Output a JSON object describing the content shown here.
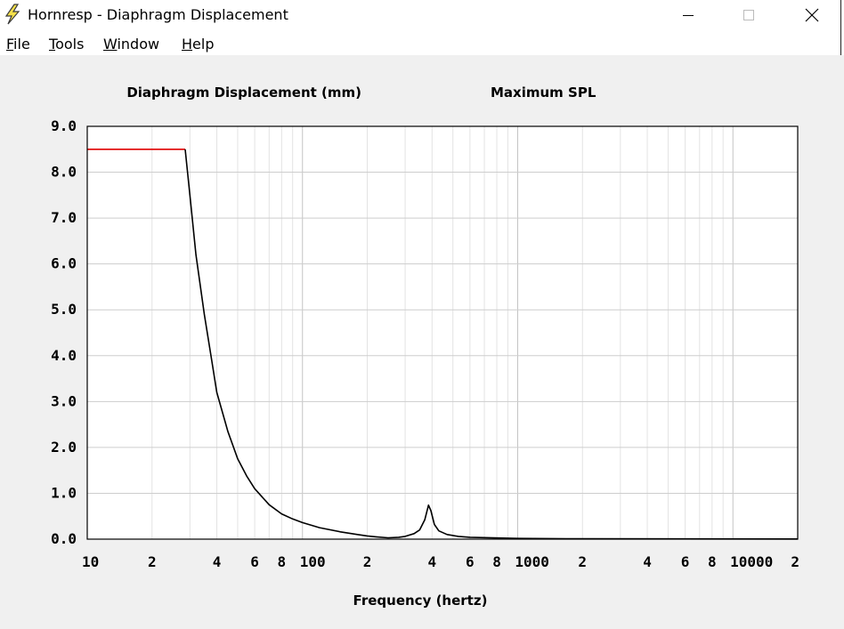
{
  "window": {
    "title": "Hornresp - Diaphragm Displacement",
    "icon": "lightning-bolt-icon",
    "controls": [
      "minimize-icon",
      "maximize-icon",
      "close-icon"
    ]
  },
  "menu": [
    {
      "label": "File",
      "mnemonic": "F",
      "rest": "ile"
    },
    {
      "label": "Tools",
      "mnemonic": "T",
      "rest": "ools"
    },
    {
      "label": "Window",
      "mnemonic": "W",
      "rest": "indow"
    },
    {
      "label": "Help",
      "mnemonic": "H",
      "rest": "elp"
    }
  ],
  "chart_data": {
    "type": "line",
    "title_left": "Diaphragm Displacement (mm)",
    "title_right": "Maximum SPL",
    "xlabel": "Frequency (hertz)",
    "ylabel": "",
    "x_scale": "log",
    "xlim": [
      10,
      20000
    ],
    "ylim": [
      0,
      9
    ],
    "grid": true,
    "y_ticks": [
      "0.0",
      "1.0",
      "2.0",
      "3.0",
      "4.0",
      "5.0",
      "6.0",
      "7.0",
      "8.0",
      "9.0"
    ],
    "x_tick_labels": [
      {
        "f": 10,
        "label": "10"
      },
      {
        "f": 20,
        "label": "2"
      },
      {
        "f": 40,
        "label": "4"
      },
      {
        "f": 60,
        "label": "6"
      },
      {
        "f": 80,
        "label": "8"
      },
      {
        "f": 100,
        "label": "100"
      },
      {
        "f": 200,
        "label": "2"
      },
      {
        "f": 400,
        "label": "4"
      },
      {
        "f": 600,
        "label": "6"
      },
      {
        "f": 800,
        "label": "8"
      },
      {
        "f": 1000,
        "label": "1000"
      },
      {
        "f": 2000,
        "label": "2"
      },
      {
        "f": 4000,
        "label": "4"
      },
      {
        "f": 6000,
        "label": "6"
      },
      {
        "f": 8000,
        "label": "8"
      },
      {
        "f": 10000,
        "label": "10000"
      },
      {
        "f": 20000,
        "label": "2"
      }
    ],
    "series": [
      {
        "color": "#e00000",
        "points": [
          [
            10,
            8.5
          ],
          [
            28.5,
            8.5
          ]
        ]
      },
      {
        "color": "#000000",
        "points": [
          [
            28.5,
            8.5
          ],
          [
            30,
            7.5
          ],
          [
            32,
            6.2
          ],
          [
            35,
            4.9
          ],
          [
            38,
            3.85
          ],
          [
            40,
            3.2
          ],
          [
            45,
            2.35
          ],
          [
            50,
            1.75
          ],
          [
            55,
            1.38
          ],
          [
            60,
            1.1
          ],
          [
            70,
            0.75
          ],
          [
            80,
            0.55
          ],
          [
            90,
            0.44
          ],
          [
            100,
            0.36
          ],
          [
            120,
            0.25
          ],
          [
            150,
            0.16
          ],
          [
            180,
            0.1
          ],
          [
            200,
            0.07
          ],
          [
            220,
            0.05
          ],
          [
            250,
            0.03
          ],
          [
            280,
            0.04
          ],
          [
            300,
            0.06
          ],
          [
            330,
            0.12
          ],
          [
            350,
            0.2
          ],
          [
            370,
            0.42
          ],
          [
            385,
            0.74
          ],
          [
            395,
            0.62
          ],
          [
            410,
            0.32
          ],
          [
            430,
            0.18
          ],
          [
            470,
            0.1
          ],
          [
            530,
            0.06
          ],
          [
            600,
            0.04
          ],
          [
            1000,
            0.015
          ],
          [
            2000,
            0.008
          ],
          [
            20000,
            0.003
          ]
        ]
      }
    ]
  }
}
